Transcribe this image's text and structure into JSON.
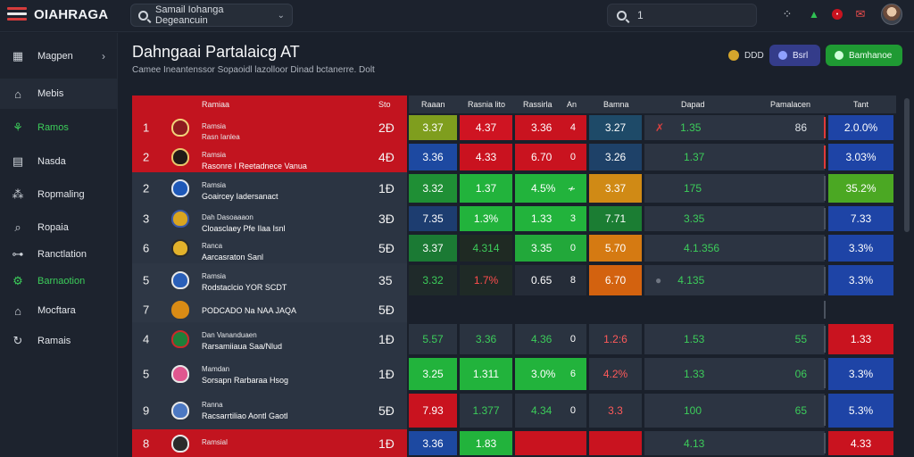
{
  "app": {
    "logo_text": "OIAHRAGA"
  },
  "topbar": {
    "dropdown_value": "Samail Iohanga Degeancuin",
    "search_value": "1"
  },
  "sidebar": {
    "items": [
      {
        "label": "Magpen",
        "icon": "building-icon",
        "active": false,
        "arrow": "›",
        "green": false
      },
      {
        "label": "Mebis",
        "icon": "bank-icon",
        "active": true,
        "arrow": "",
        "green": false
      },
      {
        "label": "Ramos",
        "icon": "share-icon",
        "active": false,
        "arrow": "",
        "green": true
      },
      {
        "label": "Nasda",
        "icon": "document-icon",
        "active": false,
        "arrow": "",
        "green": false
      },
      {
        "label": "Ropmaling",
        "icon": "network-icon",
        "active": false,
        "arrow": "",
        "green": false
      },
      {
        "label": "Ropaia",
        "icon": "search-icon",
        "active": false,
        "arrow": "",
        "green": false
      },
      {
        "label": "Ranctlation",
        "icon": "node-icon",
        "active": false,
        "arrow": "",
        "green": false
      },
      {
        "label": "Barnaotion",
        "icon": "gear-link-icon",
        "active": false,
        "arrow": "",
        "green": true
      },
      {
        "label": "Mocftara",
        "icon": "house-icon",
        "active": false,
        "arrow": "",
        "green": false
      },
      {
        "label": "Ramais",
        "icon": "refresh-icon",
        "active": false,
        "arrow": "",
        "green": false
      }
    ]
  },
  "header": {
    "title": "Dahngaai Partalaicg AT",
    "subtitle": "Camee Ineantenssor Sopaoidl lazolloor Dinad bctanerre. Dolt",
    "badge_label": "DDD",
    "blue_button": "Bsrl",
    "green_button": "Bamhanoe"
  },
  "table": {
    "headers": [
      "Ramiaa",
      "Sto",
      "Raaan",
      "Rasnia lito",
      "Rassirla",
      "An",
      "Bamna",
      "Dapad",
      "Pamalacen",
      "Tant"
    ],
    "rows": [
      {
        "rank": "1",
        "crest_color": "#8e1b20",
        "crest_border": "#f1d27a",
        "name_top": "Ramsia",
        "name_sub": "Rasn Ianlea",
        "name_main": "Rersaonieen Rasoa Gsnl",
        "score": "2Ð",
        "bg": "#c2141f",
        "c1": {
          "text": "3.37",
          "bg": "#7f9e1e"
        },
        "c2": {
          "text": "4.37",
          "bg": "#cf1422"
        },
        "c3": {
          "text": "3.36",
          "extra": "4",
          "bg": "#c9131f"
        },
        "c4": {
          "text": "3.27",
          "bg": "#1e4a68"
        },
        "c5": {
          "prefix": "✗",
          "text": "1.35",
          "right": "86",
          "bg": "#2c3442"
        },
        "c6": {
          "text": "2.0.0%",
          "bg": "#1e44a6"
        }
      },
      {
        "rank": "2",
        "crest_color": "#1f1a17",
        "crest_border": "#e7c66c",
        "name_top": "Ramsia",
        "name_sub": "",
        "name_main": "Rasonre I Reetadnece Vanua",
        "score": "4Ð",
        "bg": "#c2141f",
        "c1": {
          "text": "3.36",
          "bg": "#1d49a1"
        },
        "c2": {
          "text": "4.33",
          "bg": "#c9121f"
        },
        "c3": {
          "text": "6.70",
          "extra": "0",
          "bg": "#c9131f"
        },
        "c4": {
          "text": "3.26",
          "bg": "#1e4168"
        },
        "c5": {
          "prefix": "",
          "text": "1.37",
          "right": "",
          "bg": "#2c3442"
        },
        "c6": {
          "text": "3.03%",
          "bg": "#1e44a6"
        }
      },
      {
        "rank": "2",
        "crest_color": "#1e58b8",
        "crest_border": "#e0e6f0",
        "name_top": "Ramsia",
        "name_sub": "",
        "name_main": "Goaircey Iadersanact",
        "score": "1Ð",
        "bg": "#2b3442",
        "c1": {
          "text": "3.32",
          "bg": "#1f8f35"
        },
        "c2": {
          "text": "1.37",
          "bg": "#22b33c"
        },
        "c3": {
          "text": "4.5%",
          "extra": "≁",
          "bg": "#22b33c"
        },
        "c4": {
          "text": "3.37",
          "bg": "#d08a15"
        },
        "c5": {
          "prefix": "",
          "text": "175",
          "right": "",
          "bg": "#2c3442"
        },
        "c6": {
          "text": "35.2%",
          "bg": "#4ba823"
        }
      },
      {
        "rank": "3",
        "crest_color": "#d9a520",
        "crest_border": "#3a59a8",
        "name_top": "Dah Dasoaaaon",
        "name_sub": "",
        "name_main": "Cloasclaey Pfe Ilaa Isnl",
        "score": "3Ð",
        "bg": "#2b3442",
        "c1": {
          "text": "7.35",
          "bg": "#1d3d70"
        },
        "c2": {
          "text": "1.3%",
          "bg": "#22b33c"
        },
        "c3": {
          "text": "1.33",
          "extra": "3",
          "bg": "#22b33c"
        },
        "c4": {
          "text": "7.71",
          "bg": "#1b7d33"
        },
        "c5": {
          "prefix": "",
          "text": "3.35",
          "right": "",
          "bg": "#2c3442"
        },
        "c6": {
          "text": "7.33",
          "bg": "#1e44a6"
        }
      },
      {
        "rank": "6",
        "crest_color": "#e3b22b",
        "crest_border": "#2a2a2a",
        "name_top": "Ranca",
        "name_sub": "",
        "name_main": "Aarcasraton Sanl",
        "score": "5Ð",
        "bg": "#2b3442",
        "c1": {
          "text": "3.37",
          "bg": "#1b7a34"
        },
        "c2": {
          "text": "4.314",
          "bg": "#1f2a23"
        },
        "c3": {
          "text": "3.35",
          "extra": "0",
          "bg": "#22a83a"
        },
        "c4": {
          "text": "5.70",
          "bg": "#d57a12"
        },
        "c5": {
          "prefix": "",
          "text": "4.1.356",
          "right": "",
          "bg": "#2c3442"
        },
        "c6": {
          "text": "3.3%",
          "bg": "#1e44a6"
        }
      },
      {
        "rank": "5",
        "crest_color": "#2a5fb8",
        "crest_border": "#e8e8e8",
        "name_top": "Ramsia",
        "name_sub": "",
        "name_main": "Rodstaclcio YOR SCDT",
        "score": "35",
        "bg": "#2e3745",
        "c1": {
          "text": "3.32",
          "bg": "#1f2a2a"
        },
        "c2": {
          "text": "1.7%",
          "bg": "#1f2a26"
        },
        "c3": {
          "text": "0.65",
          "extra": "8",
          "bg": "#252c38"
        },
        "c4": {
          "text": "6.70",
          "bg": "#d3620f"
        },
        "c5": {
          "prefix": "●",
          "text": "4.135",
          "right": "",
          "bg": "#2c3442"
        },
        "c6": {
          "text": "3.3%",
          "bg": "#1e44a6"
        }
      },
      {
        "rank": "7",
        "crest_color": "#d98b15",
        "crest_border": "#d98b15",
        "name_top": "",
        "name_sub": "",
        "name_main": "PODCADO Na NAA JAQA",
        "score": "5Ð",
        "bg": "#2e3745",
        "c1": null,
        "c2": null,
        "c3": null,
        "c4": null,
        "c5": null,
        "c6": null
      },
      {
        "rank": "4",
        "crest_color": "#1e7f3a",
        "crest_border": "#c92a2a",
        "name_top": "Dan Vananduaen",
        "name_sub": "",
        "name_main": "Rarsamiiaua Saa/Nlud",
        "score": "1Ð",
        "bg": "#2b3442",
        "c1": {
          "text": "5.57",
          "bg": "#2a3340"
        },
        "c2": {
          "text": "3.36",
          "bg": "#2a3340"
        },
        "c3": {
          "text": "4.36",
          "extra": "0",
          "bg": "#2a3340"
        },
        "c4": {
          "text": "1.2:6",
          "bg": "#2a3340"
        },
        "c5": {
          "prefix": "",
          "text": "1.53",
          "right": "55",
          "bg": "#2c3442"
        },
        "c6": {
          "text": "1.33",
          "bg": "#c9131f"
        }
      },
      {
        "rank": "5",
        "crest_color": "#e0578f",
        "crest_border": "#e8e8e8",
        "name_top": "Mamdan",
        "name_sub": "",
        "name_main": "Sorsapn Rarbaraa Hsog",
        "score": "1Ð",
        "bg": "#2b3442",
        "c1": {
          "text": "3.25",
          "bg": "#22b33c"
        },
        "c2": {
          "text": "1.311",
          "bg": "#22b33c"
        },
        "c3": {
          "text": "3.0%",
          "extra": "6",
          "bg": "#22b33c"
        },
        "c4": {
          "text": "4.2%",
          "bg": "#2a3340"
        },
        "c5": {
          "prefix": "",
          "text": "1.33",
          "right": "06",
          "bg": "#2c3442"
        },
        "c6": {
          "text": "3.3%",
          "bg": "#1e44a6"
        }
      },
      {
        "rank": "9",
        "crest_color": "#4c78c2",
        "crest_border": "#e8e8e8",
        "name_top": "Ranna",
        "name_sub": "",
        "name_main": "Racsarrtiliao Aontl Gaotl",
        "score": "5Ð",
        "bg": "#2b3442",
        "c1": {
          "text": "7.93",
          "bg": "#c9131f"
        },
        "c2": {
          "text": "1.377",
          "bg": "#2a3340"
        },
        "c3": {
          "text": "4.34",
          "extra": "0",
          "bg": "#2a3340"
        },
        "c4": {
          "text": "3.3",
          "bg": "#2a3340"
        },
        "c5": {
          "prefix": "",
          "text": "100",
          "right": "65",
          "bg": "#2c3442"
        },
        "c6": {
          "text": "5.3%",
          "bg": "#1e44a6"
        }
      },
      {
        "rank": "8",
        "crest_color": "#2b2b2b",
        "crest_border": "#e8e8e8",
        "name_top": "Ramsial",
        "name_sub": "",
        "name_main": "",
        "score": "1Ð",
        "bg": "#c2141f",
        "c1": {
          "text": "3.36",
          "bg": "#1d49a1"
        },
        "c2": {
          "text": "1.83",
          "bg": "#22b33c"
        },
        "c3": {
          "text": "",
          "extra": "",
          "bg": "#c9131f"
        },
        "c4": {
          "text": "",
          "bg": "#c9131f"
        },
        "c5": {
          "prefix": "",
          "text": "4.13",
          "right": "",
          "bg": "#2c3442"
        },
        "c6": {
          "text": "4.33",
          "bg": "#c9131f"
        }
      }
    ]
  },
  "colors": {
    "accent_green": "#3ccd5a",
    "accent_red": "#c2141f",
    "accent_blue": "#1e44a6"
  }
}
